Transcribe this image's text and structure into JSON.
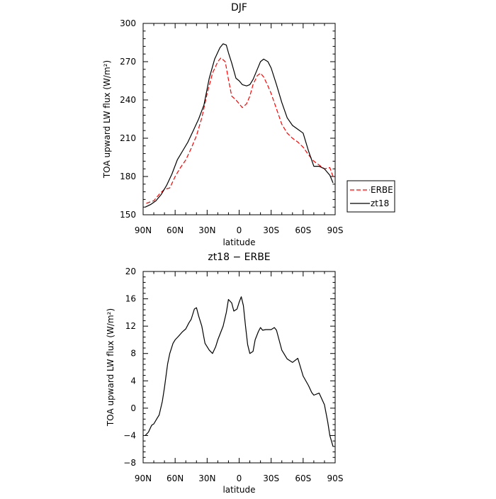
{
  "chart_data": [
    {
      "type": "line",
      "title": "DJF",
      "xlabel": "latitude",
      "ylabel": "TOA upward LW flux (W/m²)",
      "x_ticks": [
        "90N",
        "60N",
        "30N",
        "0",
        "30S",
        "60S",
        "90S"
      ],
      "x_tick_values": [
        90,
        60,
        30,
        0,
        -30,
        -60,
        -90
      ],
      "xlim": [
        90,
        -90
      ],
      "ylim": [
        150,
        300
      ],
      "y_ticks": [
        "150",
        "180",
        "210",
        "240",
        "270",
        "300"
      ],
      "y_tick_values": [
        150,
        180,
        210,
        240,
        270,
        300
      ],
      "legend_position": "right",
      "series": [
        {
          "name": "ERBE",
          "color": "#ff0000",
          "dash": "dashed",
          "x": [
            87,
            80,
            75,
            70,
            65,
            60,
            55,
            50,
            45,
            40,
            35,
            30,
            25,
            20,
            17,
            13,
            10,
            7,
            3,
            0,
            -3,
            -7,
            -10,
            -13,
            -17,
            -20,
            -23,
            -27,
            -30,
            -35,
            -40,
            -45,
            -50,
            -55,
            -60,
            -65,
            -70,
            -75,
            -80,
            -85,
            -88
          ],
          "y": [
            159,
            161,
            166,
            170,
            171,
            180,
            187,
            193,
            202,
            212,
            226,
            245,
            261,
            270,
            273,
            270,
            256,
            243,
            240,
            237,
            234,
            237,
            243,
            252,
            259,
            261,
            258,
            251,
            245,
            233,
            221,
            214,
            210,
            207,
            203,
            197,
            192,
            189,
            186,
            187,
            180
          ]
        },
        {
          "name": "zt18",
          "color": "#000000",
          "dash": "solid",
          "x": [
            88,
            83,
            78,
            73,
            68,
            63,
            58,
            53,
            48,
            43,
            38,
            33,
            28,
            23,
            18,
            15,
            12,
            10,
            7,
            3,
            0,
            -3,
            -7,
            -10,
            -13,
            -17,
            -20,
            -23,
            -27,
            -30,
            -35,
            -40,
            -45,
            -50,
            -55,
            -60,
            -65,
            -70,
            -75,
            -80,
            -85,
            -88
          ],
          "y": [
            156,
            158,
            161,
            166,
            173,
            182,
            193,
            200,
            207,
            216,
            225,
            236,
            257,
            272,
            281,
            284,
            283,
            277,
            269,
            257,
            255,
            252,
            251,
            252,
            256,
            264,
            270,
            272,
            270,
            265,
            252,
            238,
            226,
            220,
            217,
            214,
            200,
            188,
            188,
            186,
            181,
            175
          ]
        }
      ]
    },
    {
      "type": "line",
      "title": "zt18 − ERBE",
      "xlabel": "latitude",
      "ylabel": "TOA upward LW flux (W/m²)",
      "x_ticks": [
        "90N",
        "60N",
        "30N",
        "0",
        "30S",
        "60S",
        "90S"
      ],
      "x_tick_values": [
        90,
        60,
        30,
        0,
        -30,
        -60,
        -90
      ],
      "xlim": [
        90,
        -90
      ],
      "ylim": [
        -8,
        20
      ],
      "y_ticks": [
        "−8",
        "−4",
        "0",
        "4",
        "8",
        "12",
        "16",
        "20"
      ],
      "y_tick_values": [
        -8,
        -4,
        0,
        4,
        8,
        12,
        16,
        20
      ],
      "series": [
        {
          "name": "",
          "color": "#000000",
          "dash": "solid",
          "x": [
            88,
            85,
            82,
            80,
            77,
            75,
            72,
            70,
            67,
            65,
            62,
            60,
            57,
            53,
            50,
            47,
            45,
            42,
            40,
            38,
            35,
            32,
            28,
            25,
            22,
            20,
            15,
            12,
            10,
            7,
            5,
            2,
            0,
            -2,
            -4,
            -6,
            -8,
            -10,
            -13,
            -15,
            -18,
            -20,
            -22,
            -25,
            -28,
            -30,
            -33,
            -35,
            -40,
            -45,
            -50,
            -55,
            -60,
            -65,
            -68,
            -70,
            -75,
            -80,
            -83,
            -85,
            -88
          ],
          "y": [
            -4,
            -3.5,
            -2.5,
            -2.3,
            -1.5,
            -1,
            1,
            3,
            6.5,
            8,
            9.5,
            10,
            10.5,
            11.2,
            11.6,
            12.5,
            13,
            14.5,
            14.7,
            13.5,
            12,
            9.5,
            8.5,
            8,
            9,
            10,
            12,
            14,
            15.9,
            15.4,
            14.2,
            14.5,
            15.5,
            16.3,
            15,
            12,
            9.3,
            8,
            8.3,
            10,
            11.2,
            11.8,
            11.4,
            11.5,
            11.5,
            11.5,
            11.8,
            11.4,
            8.5,
            7.2,
            6.7,
            7.3,
            4.7,
            3.3,
            2.3,
            1.9,
            2.2,
            0.5,
            -2,
            -4,
            -5.6
          ]
        }
      ]
    }
  ]
}
